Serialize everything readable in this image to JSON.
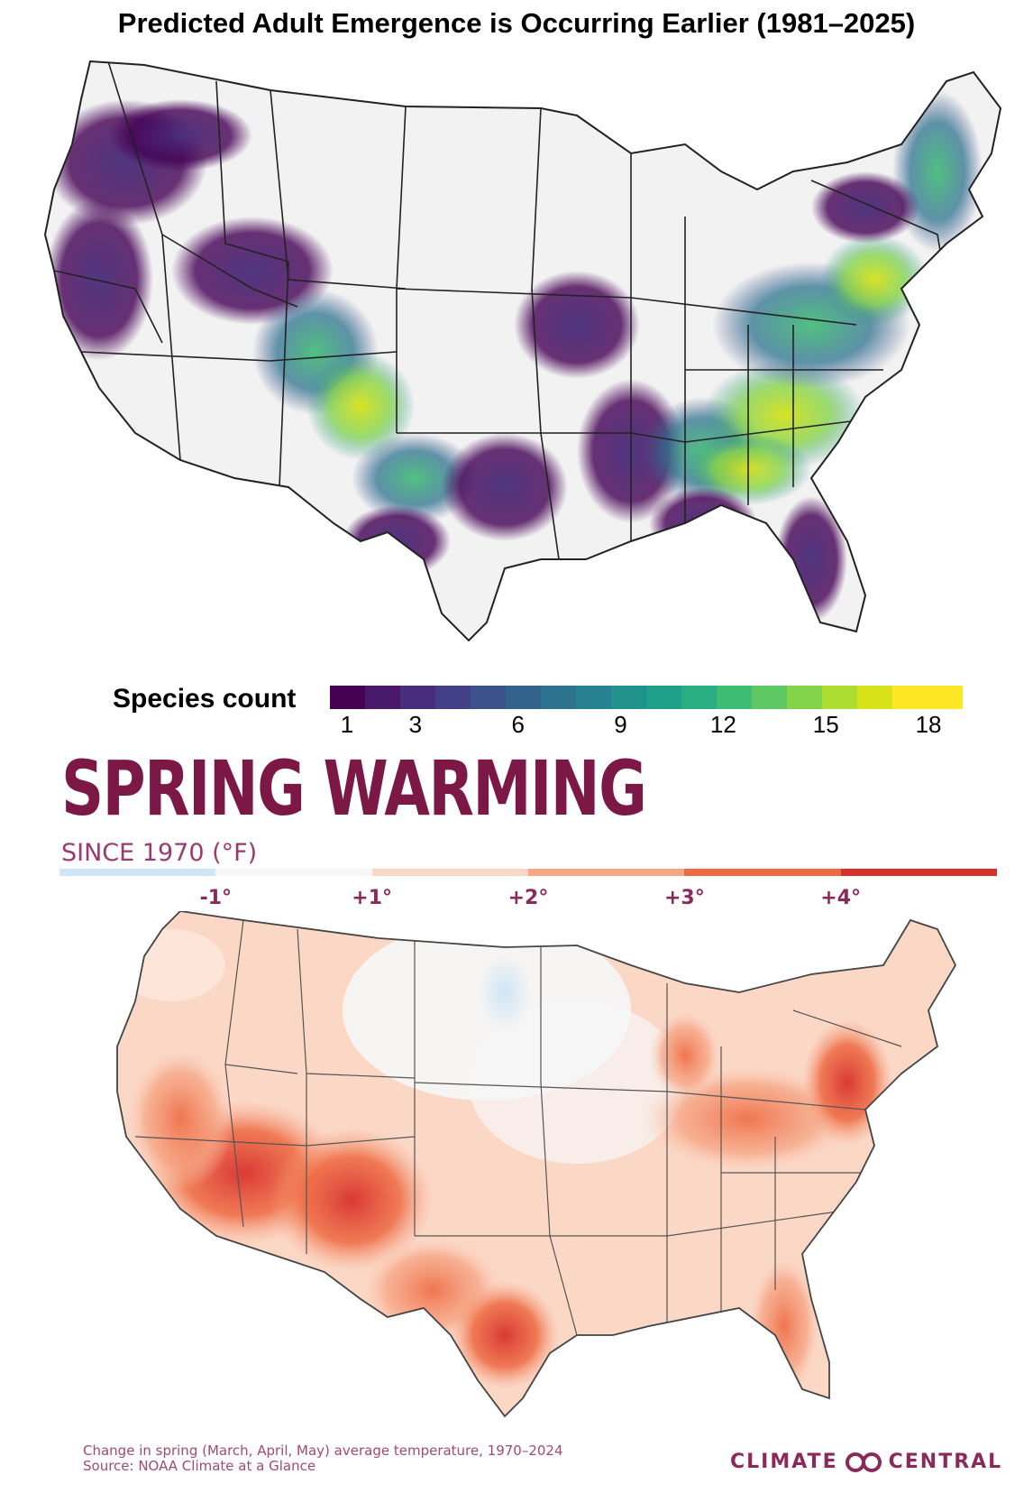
{
  "title": "Predicted Adult Emergence is Occurring Earlier (1981–2025)",
  "map_top": {
    "legend_title": "Species count",
    "colors": [
      "#440154",
      "#48186a",
      "#472d7b",
      "#424086",
      "#3b528b",
      "#33638d",
      "#2c728e",
      "#26828e",
      "#21918c",
      "#1fa088",
      "#28ae80",
      "#3fbc73",
      "#5ec962",
      "#84d44b",
      "#addc30",
      "#d8e219",
      "#fde725",
      "#fde725"
    ],
    "ticks": [
      "1",
      "3",
      "6",
      "9",
      "12",
      "15",
      "18"
    ],
    "tick_values": [
      1,
      3,
      6,
      9,
      12,
      15,
      18
    ],
    "range": [
      1,
      18
    ]
  },
  "spring": {
    "title": "SPRING WARMING",
    "subtitle": "SINCE 1970 (°F)",
    "colors": [
      "#cfe6f6",
      "#f7f7f7",
      "#fbd7c6",
      "#f6a685",
      "#ee6a42",
      "#d8312c"
    ],
    "ticks": [
      "-1°",
      "+1°",
      "+2°",
      "+3°",
      "+4°"
    ],
    "note_line1": "Change in spring (March, April, May) average temperature, 1970–2024",
    "note_line2": "Source: NOAA Climate at a Glance",
    "brand_left": "CLIMATE",
    "brand_right": "CENTRAL"
  }
}
